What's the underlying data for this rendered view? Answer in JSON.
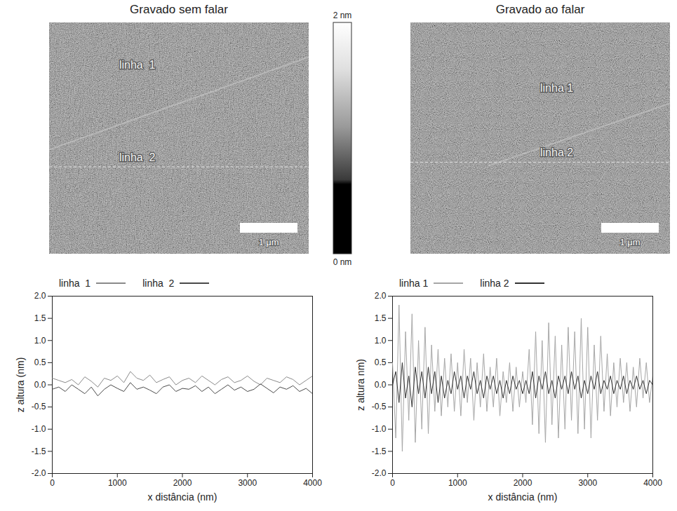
{
  "images": [
    {
      "title": "Gravado sem falar",
      "labels": [
        "linha  1",
        "linha  2"
      ],
      "scale_bar": "1 μm"
    },
    {
      "title": "Gravado ao falar",
      "labels": [
        "linha 1",
        "linha 2"
      ],
      "scale_bar": "1 μm"
    }
  ],
  "color_bar": {
    "range": [
      0,
      2
    ],
    "ticks": [
      {
        "value": 2,
        "label": "2 nm"
      },
      {
        "value": 0,
        "label": "0 nm"
      }
    ]
  },
  "chart_data": [
    {
      "type": "line",
      "xlabel": "x distância (nm)",
      "ylabel": "z altura (nm)",
      "xlim": [
        0,
        4000
      ],
      "ylim": [
        -2,
        2
      ],
      "xticks": [
        0,
        1000,
        2000,
        3000,
        4000
      ],
      "yticks": [
        {
          "value": -2,
          "label": "-2.0"
        },
        {
          "value": -1.5,
          "label": "-1.5"
        },
        {
          "value": -1,
          "label": "-1.0"
        },
        {
          "value": -0.5,
          "label": "-0.5"
        },
        {
          "value": 0,
          "label": "0.0"
        },
        {
          "value": 0.5,
          "label": "0.5"
        },
        {
          "value": 1,
          "label": "1.0"
        },
        {
          "value": 1.5,
          "label": "1.5"
        },
        {
          "value": 2,
          "label": "2.0"
        }
      ],
      "legend": "top",
      "x": [
        0,
        100,
        200,
        300,
        400,
        500,
        600,
        700,
        800,
        900,
        1000,
        1100,
        1200,
        1300,
        1400,
        1500,
        1600,
        1700,
        1800,
        1900,
        2000,
        2100,
        2200,
        2300,
        2400,
        2500,
        2600,
        2700,
        2800,
        2900,
        3000,
        3100,
        3200,
        3300,
        3400,
        3500,
        3600,
        3700,
        3800,
        3900,
        4000
      ],
      "series": [
        {
          "name": "linha  1",
          "color": "#8a8a8a",
          "values": [
            0.15,
            0.1,
            0.05,
            0.12,
            0.0,
            0.18,
            0.08,
            -0.05,
            0.15,
            0.1,
            0.2,
            0.05,
            0.3,
            0.15,
            0.1,
            0.22,
            0.05,
            0.12,
            0.18,
            0.0,
            0.1,
            0.15,
            0.05,
            0.2,
            0.1,
            0.0,
            0.12,
            0.18,
            0.05,
            0.1,
            0.2,
            0.08,
            0.0,
            0.15,
            0.1,
            0.05,
            0.18,
            0.12,
            0.0,
            0.1,
            0.2
          ]
        },
        {
          "name": "linha  2",
          "color": "#4a4a4a",
          "values": [
            -0.1,
            -0.05,
            -0.15,
            0.0,
            -0.1,
            -0.2,
            -0.05,
            -0.25,
            -0.1,
            0.0,
            -0.08,
            -0.15,
            0.05,
            -0.1,
            -0.05,
            -0.12,
            -0.2,
            -0.05,
            0.0,
            -0.15,
            -0.08,
            -0.1,
            -0.02,
            -0.15,
            -0.05,
            -0.2,
            -0.1,
            0.0,
            -0.12,
            -0.05,
            -0.15,
            -0.1,
            0.02,
            -0.08,
            -0.18,
            -0.05,
            -0.1,
            -0.02,
            -0.15,
            -0.08,
            -0.2
          ]
        }
      ]
    },
    {
      "type": "line",
      "xlabel": "x distância (nm)",
      "ylabel": "z altura nm)",
      "xlim": [
        0,
        4000
      ],
      "ylim": [
        -2,
        2
      ],
      "xticks": [
        0,
        1000,
        2000,
        3000,
        4000
      ],
      "yticks": [
        {
          "value": -2,
          "label": "-2.0"
        },
        {
          "value": -1.5,
          "label": "-1.5"
        },
        {
          "value": -1,
          "label": "-1.0"
        },
        {
          "value": -0.5,
          "label": "-0.5"
        },
        {
          "value": 0,
          "label": "0.0"
        },
        {
          "value": 0.5,
          "label": "0.5"
        },
        {
          "value": 1,
          "label": "1.0"
        },
        {
          "value": 1.5,
          "label": "1.5"
        },
        {
          "value": 2,
          "label": "2.0"
        }
      ],
      "legend": "top",
      "x": [
        0,
        50,
        100,
        150,
        200,
        250,
        300,
        350,
        400,
        450,
        500,
        550,
        600,
        650,
        700,
        750,
        800,
        850,
        900,
        950,
        1000,
        1050,
        1100,
        1150,
        1200,
        1250,
        1300,
        1350,
        1400,
        1450,
        1500,
        1550,
        1600,
        1650,
        1700,
        1750,
        1800,
        1850,
        1900,
        1950,
        2000,
        2050,
        2100,
        2150,
        2200,
        2250,
        2300,
        2350,
        2400,
        2450,
        2500,
        2550,
        2600,
        2650,
        2700,
        2750,
        2800,
        2850,
        2900,
        2950,
        3000,
        3050,
        3100,
        3150,
        3200,
        3250,
        3300,
        3350,
        3400,
        3450,
        3500,
        3550,
        3600,
        3650,
        3700,
        3750,
        3800,
        3850,
        3900,
        3950,
        4000
      ],
      "series": [
        {
          "name": "linha 1",
          "color": "#a6a6a6",
          "values": [
            0.5,
            -1.2,
            1.8,
            -1.5,
            1.2,
            -0.8,
            1.6,
            -1.3,
            1.0,
            -1.0,
            1.3,
            -1.1,
            0.9,
            -0.6,
            0.8,
            -0.7,
            0.6,
            -0.5,
            0.7,
            -0.6,
            0.5,
            -0.7,
            0.8,
            -0.4,
            0.6,
            -0.8,
            0.5,
            -0.5,
            0.7,
            -0.6,
            0.4,
            -0.5,
            0.6,
            -0.7,
            0.3,
            -0.4,
            0.5,
            -0.6,
            0.4,
            -0.5,
            0.3,
            -0.4,
            0.8,
            -0.9,
            1.2,
            -1.1,
            1.0,
            -1.3,
            1.4,
            -0.9,
            1.1,
            -1.2,
            0.9,
            -1.0,
            1.3,
            -0.8,
            1.2,
            -1.1,
            1.5,
            -1.0,
            1.3,
            -1.2,
            0.9,
            -0.8,
            1.1,
            -0.6,
            0.7,
            -0.7,
            0.5,
            -0.5,
            0.6,
            -0.4,
            0.5,
            -0.6,
            0.4,
            -0.5,
            0.6,
            -0.3,
            0.5,
            -0.4,
            0.2
          ]
        },
        {
          "name": "linha 2",
          "color": "#333333",
          "values": [
            0.0,
            0.3,
            -0.4,
            0.5,
            -0.3,
            0.2,
            -0.5,
            0.4,
            -0.2,
            0.3,
            -0.3,
            0.4,
            -0.2,
            0.3,
            -0.4,
            0.2,
            -0.3,
            0.1,
            -0.2,
            0.3,
            -0.1,
            0.2,
            -0.3,
            0.2,
            -0.1,
            0.3,
            -0.2,
            0.1,
            -0.3,
            0.2,
            -0.1,
            0.2,
            -0.2,
            0.1,
            -0.3,
            0.1,
            -0.2,
            0.2,
            -0.1,
            0.1,
            -0.2,
            0.1,
            -0.2,
            0.3,
            -0.3,
            0.2,
            -0.1,
            0.3,
            -0.2,
            0.1,
            -0.3,
            0.2,
            -0.1,
            0.2,
            -0.2,
            0.3,
            -0.1,
            0.2,
            -0.3,
            0.1,
            -0.2,
            0.2,
            -0.1,
            0.3,
            -0.2,
            0.1,
            -0.1,
            0.2,
            -0.2,
            0.1,
            -0.1,
            0.2,
            -0.2,
            0.1,
            -0.1,
            0.2,
            -0.1,
            0.1,
            -0.2,
            0.1,
            0.0
          ]
        }
      ]
    }
  ]
}
